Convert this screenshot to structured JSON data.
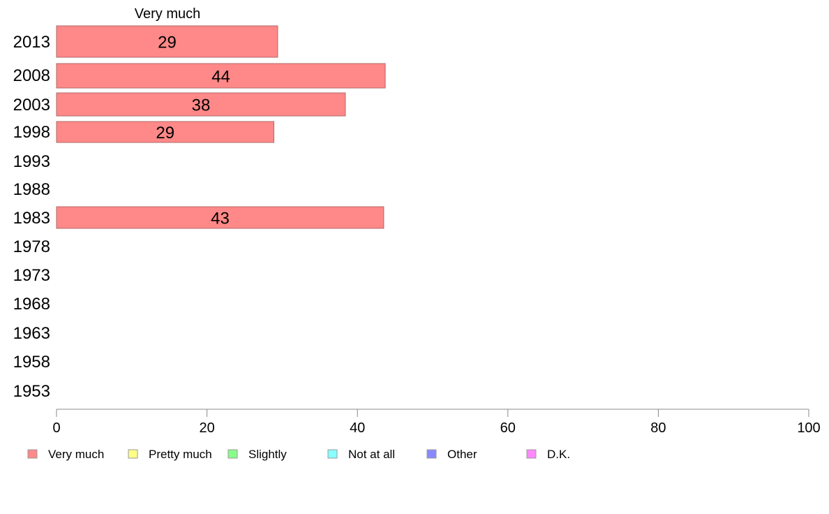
{
  "chart_data": {
    "type": "bar",
    "orientation": "horizontal",
    "title": "Very much",
    "categories": [
      "2013",
      "2008",
      "2003",
      "1998",
      "1993",
      "1988",
      "1983",
      "1978",
      "1973",
      "1968",
      "1963",
      "1958",
      "1953"
    ],
    "series": [
      {
        "name": "Very much",
        "color": "#ff8888",
        "values": [
          29.4,
          43.7,
          38.4,
          28.9,
          null,
          null,
          43.5,
          null,
          null,
          null,
          null,
          null,
          null
        ],
        "labels": [
          "29",
          "44",
          "38",
          "29",
          null,
          null,
          "43",
          null,
          null,
          null,
          null,
          null,
          null
        ]
      }
    ],
    "xlim": [
      0,
      100
    ],
    "xticks": [
      "0",
      "20",
      "40",
      "60",
      "80",
      "100"
    ],
    "grid": false,
    "legend_position": "bottom",
    "legend": [
      {
        "label": "Very much",
        "color": "#ff8888"
      },
      {
        "label": "Pretty much",
        "color": "#ffff88"
      },
      {
        "label": "Slightly",
        "color": "#88ff88"
      },
      {
        "label": "Not at all",
        "color": "#88ffff"
      },
      {
        "label": "Other",
        "color": "#8888ff"
      },
      {
        "label": "D.K.",
        "color": "#ff88ff"
      }
    ]
  }
}
